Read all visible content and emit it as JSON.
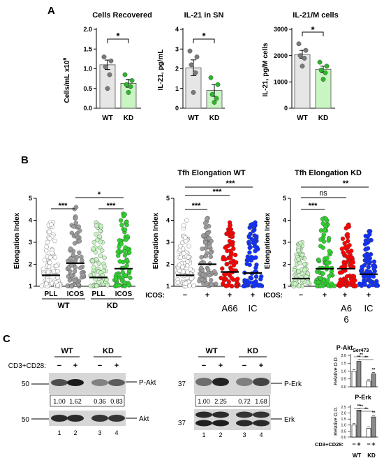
{
  "panel_letters": {
    "a": "A",
    "b": "B",
    "c": "C"
  },
  "charts_a": [
    {
      "title": "Cells Recovered",
      "ylabel_main": "Cells/mL x10",
      "ylabel_sup": "6",
      "ticks": [
        "0.0",
        "0.5",
        "1.0",
        "1.5",
        "2.0"
      ],
      "sig": "*",
      "xlabels": [
        "WT",
        "KD"
      ]
    },
    {
      "title": "IL-21 in SN",
      "ylabel": "IL-21, pg/mL",
      "ticks": [
        "0",
        "1",
        "2",
        "3",
        "4"
      ],
      "sig": "*",
      "xlabels": [
        "WT",
        "KD"
      ]
    },
    {
      "title": "IL-21/M cells",
      "ylabel": "IL-21, pg/M cells",
      "ticks": [
        "0",
        "1000",
        "2000",
        "3000"
      ],
      "sig": "*",
      "xlabels": [
        "WT",
        "KD"
      ]
    }
  ],
  "chart_data": [
    {
      "type": "bar",
      "title": "Cells Recovered",
      "ylabel": "Cells/mL x10^6",
      "ylim": [
        0,
        2.0
      ],
      "categories": [
        "WT",
        "KD"
      ],
      "values": [
        1.1,
        0.63
      ],
      "errors": [
        0.12,
        0.1
      ],
      "points": [
        [
          1.3,
          1.2,
          1.05,
          0.85,
          0.5
        ],
        [
          0.85,
          0.7,
          0.6,
          0.55,
          0.4
        ]
      ],
      "colors": [
        "#e6e6e6",
        "#c8f5c2"
      ],
      "significance": "*"
    },
    {
      "type": "bar",
      "title": "IL-21 in SN",
      "ylabel": "IL-21, pg/mL",
      "ylim": [
        0,
        4
      ],
      "categories": [
        "WT",
        "KD"
      ],
      "values": [
        2.05,
        0.9
      ],
      "errors": [
        0.4,
        0.3
      ],
      "points": [
        [
          2.9,
          2.6,
          2.2,
          1.8,
          0.8
        ],
        [
          1.55,
          1.2,
          0.7,
          0.5,
          0.3
        ]
      ],
      "colors": [
        "#e6e6e6",
        "#c8f5c2"
      ],
      "significance": "*"
    },
    {
      "type": "bar",
      "title": "IL-21/M cells",
      "ylabel": "IL-21, pg/M cells",
      "ylim": [
        0,
        3000
      ],
      "categories": [
        "WT",
        "KD"
      ],
      "values": [
        2050,
        1480
      ],
      "errors": [
        150,
        120
      ],
      "points": [
        [
          2450,
          2200,
          2000,
          1900,
          1600
        ],
        [
          1750,
          1600,
          1450,
          1350,
          1100
        ]
      ],
      "colors": [
        "#e6e6e6",
        "#c8f5c2"
      ],
      "significance": "*"
    },
    {
      "type": "scatter",
      "title": "",
      "ylabel": "Elongation Index",
      "ylim": [
        1,
        5
      ],
      "categories": [
        "PLL",
        "ICOS",
        "PLL",
        "ICOS"
      ],
      "groups": [
        "WT",
        "KD"
      ],
      "medians": [
        1.5,
        2.05,
        1.4,
        1.8
      ],
      "maxima": [
        3.9,
        4.6,
        3.9,
        4.3
      ]
    },
    {
      "type": "scatter",
      "title": "Tfh Elongation WT",
      "ylabel": "Elongation Index",
      "ylim": [
        1,
        5
      ],
      "categories": [
        "−",
        "+",
        "+",
        "+"
      ],
      "sublabels": [
        "",
        "",
        "A66",
        "IC"
      ],
      "medians": [
        1.5,
        2.0,
        1.65,
        1.6
      ],
      "maxima": [
        4.0,
        4.1,
        3.9,
        3.9
      ]
    },
    {
      "type": "scatter",
      "title": "Tfh Elongation KD",
      "ylabel": "Elongation Index",
      "ylim": [
        1,
        5
      ],
      "categories": [
        "−",
        "+",
        "+",
        "+"
      ],
      "sublabels": [
        "",
        "",
        "A6\n6",
        "IC"
      ],
      "medians": [
        1.35,
        1.8,
        1.8,
        1.55
      ],
      "maxima": [
        3.0,
        4.1,
        3.8,
        3.5
      ]
    },
    {
      "type": "bar",
      "title": "P-Akt Ser473",
      "ylabel": "Relative O.D.",
      "ylim": [
        0,
        2.0
      ],
      "categories": [
        "WT −",
        "WT +",
        "KD −",
        "KD +"
      ],
      "values": [
        1.0,
        1.62,
        0.36,
        0.83
      ]
    },
    {
      "type": "bar",
      "title": "P-Erk",
      "ylabel": "Relative O.D.",
      "ylim": [
        0,
        2.5
      ],
      "categories": [
        "WT −",
        "WT +",
        "KD −",
        "KD +"
      ],
      "values": [
        1.0,
        2.25,
        0.72,
        1.68
      ]
    }
  ],
  "panel_b": {
    "ylabel": "Elongation Index",
    "ticks": [
      "1",
      "2",
      "3",
      "4",
      "5"
    ],
    "left": {
      "x": [
        "PLL",
        "ICOS",
        "PLL",
        "ICOS"
      ],
      "groups": [
        "WT",
        "KD"
      ],
      "sigs": [
        "***",
        "***",
        "*"
      ]
    },
    "mid": {
      "title": "Tfh Elongation WT",
      "icos": "ICOS:",
      "signs": [
        "−",
        "+",
        "+",
        "+"
      ],
      "sub": [
        "A66",
        "IC"
      ],
      "sigs": [
        "***",
        "***",
        "***"
      ]
    },
    "right": {
      "title": "Tfh Elongation KD",
      "icos": "ICOS:",
      "signs": [
        "−",
        "+",
        "+",
        "+"
      ],
      "sub1": "A6",
      "sub2": "6",
      "sub3": "IC",
      "sigs": [
        "***",
        "ns",
        "**"
      ]
    }
  },
  "panel_c": {
    "akt": {
      "wt": "WT",
      "kd": "KD",
      "cd": "CD3+CD28:",
      "signs": [
        "−",
        "+",
        "−",
        "+"
      ],
      "mw_top": "50",
      "mw_bot": "50",
      "band_top": "P-Akt",
      "band_bot": "Akt",
      "values": [
        "1.00",
        "1.62",
        "0.36",
        "0.83"
      ],
      "lanes": [
        "1",
        "2",
        "3",
        "4"
      ]
    },
    "erk": {
      "wt": "WT",
      "kd": "KD",
      "signs": [
        "−",
        "+",
        "−",
        "+"
      ],
      "mw_top": "37",
      "mw_bot": "37",
      "band_top": "P-Erk",
      "band_bot": "Erk",
      "values": [
        "1.00",
        "2.25",
        "0.72",
        "1.68"
      ],
      "lanes": [
        "1",
        "2",
        "3",
        "4"
      ]
    },
    "mini": {
      "title1_main": "P-Akt",
      "title1_sub": "Ser473",
      "title2": "P-Erk",
      "ylabel": "Relative O.D.",
      "ticks1": [
        "0.0",
        "0.5",
        "1.0",
        "1.5",
        "2.0"
      ],
      "ticks2": [
        "0.0",
        "0.5",
        "1.0",
        "1.5",
        "2.0",
        "2.5"
      ],
      "sig": "**",
      "cd": "CD3+CD28:",
      "signs": [
        "−",
        "+",
        "−",
        "+"
      ],
      "wt": "WT",
      "kd": "KD"
    }
  }
}
